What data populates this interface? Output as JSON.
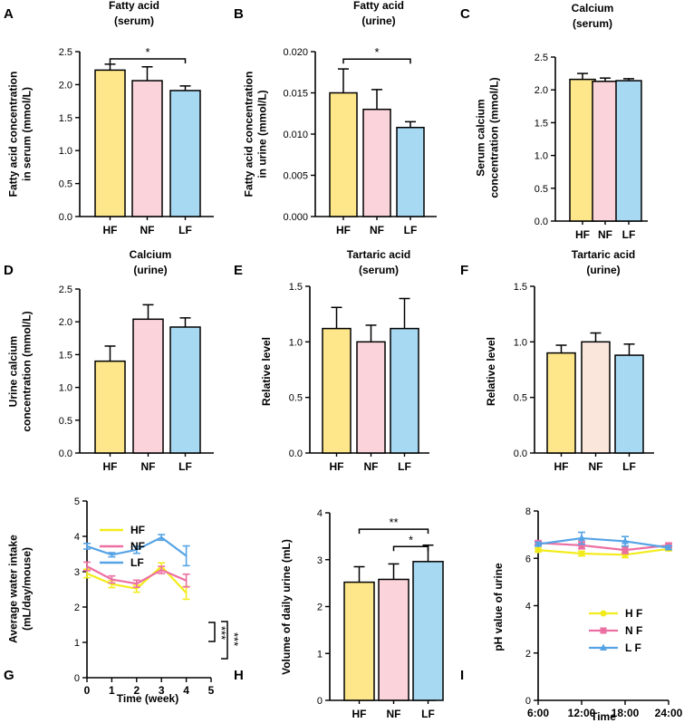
{
  "colors": {
    "HF": "#fde78a",
    "NF": "#fbd3da",
    "LF": "#a7d9f3",
    "NF_F": "#fbe6dc",
    "line_HF": "#f2ec1c",
    "line_NF": "#ec6fa2",
    "line_LF": "#55a3e5"
  },
  "chart_data": [
    {
      "id": "A",
      "type": "bar",
      "title": [
        "Fatty acid",
        "(serum)"
      ],
      "ylabel": [
        "Fatty acid concentration",
        "in serum (mmol/L)"
      ],
      "categories": [
        "HF",
        "NF",
        "LF"
      ],
      "values": [
        2.22,
        2.06,
        1.91
      ],
      "errors": [
        0.09,
        0.21,
        0.07
      ],
      "ylim": [
        0,
        2.5
      ],
      "ticks": [
        0,
        0.5,
        1.0,
        1.5,
        2.0,
        2.5
      ],
      "tick_labels": [
        "0.0",
        "0.5",
        "1.0",
        "1.5",
        "2.0",
        "2.5"
      ],
      "colors": [
        "HF",
        "NF",
        "LF"
      ],
      "sig": [
        {
          "from": 0,
          "to": 2,
          "label": "*",
          "level": 2.39
        }
      ]
    },
    {
      "id": "B",
      "type": "bar",
      "title": [
        "Fatty acid",
        "(urine)"
      ],
      "ylabel": [
        "Fatty acid concentration",
        "in urine (mmol/L)"
      ],
      "categories": [
        "HF",
        "NF",
        "LF"
      ],
      "values": [
        0.015,
        0.013,
        0.0108
      ],
      "errors": [
        0.0029,
        0.0024,
        0.0007
      ],
      "ylim": [
        0,
        0.02
      ],
      "ticks": [
        0,
        0.005,
        0.01,
        0.015,
        0.02
      ],
      "tick_labels": [
        "0.000",
        "0.005",
        "0.010",
        "0.015",
        "0.020"
      ],
      "colors": [
        "HF",
        "NF",
        "LF"
      ],
      "sig": [
        {
          "from": 0,
          "to": 2,
          "label": "*",
          "level": 0.0191
        }
      ]
    },
    {
      "id": "C",
      "type": "bar",
      "title": [
        "Calcium",
        "(serum)"
      ],
      "ylabel": [
        "Serum calcium",
        "concentration (mmol/L)"
      ],
      "categories": [
        "HF",
        "NF",
        "LF"
      ],
      "values": [
        2.16,
        2.13,
        2.14
      ],
      "errors": [
        0.09,
        0.05,
        0.03
      ],
      "ylim": [
        0,
        2.5
      ],
      "ticks": [
        0,
        0.5,
        1.0,
        1.5,
        2.0,
        2.5
      ],
      "tick_labels": [
        "0.0",
        "0.5",
        "1.0",
        "1.5",
        "2.0",
        "2.5"
      ],
      "colors": [
        "HF",
        "NF",
        "LF"
      ],
      "sig": []
    },
    {
      "id": "D",
      "type": "bar",
      "title": [
        "Calcium",
        "(urine)"
      ],
      "ylabel": [
        "Urine calcium",
        "concentration (mmol/L)"
      ],
      "categories": [
        "HF",
        "NF",
        "LF"
      ],
      "values": [
        1.4,
        2.04,
        1.92
      ],
      "errors": [
        0.23,
        0.22,
        0.14
      ],
      "ylim": [
        0,
        2.5
      ],
      "ticks": [
        0,
        0.5,
        1.0,
        1.5,
        2.0,
        2.5
      ],
      "tick_labels": [
        "0.0",
        "0.5",
        "1.0",
        "1.5",
        "2.0",
        "2.5"
      ],
      "colors": [
        "HF",
        "NF",
        "LF"
      ],
      "sig": []
    },
    {
      "id": "E",
      "type": "bar",
      "title": [
        "Tartaric acid",
        "(serum)"
      ],
      "ylabel": [
        "Relative level"
      ],
      "categories": [
        "HF",
        "NF",
        "LF"
      ],
      "values": [
        1.12,
        1.0,
        1.12
      ],
      "errors": [
        0.19,
        0.15,
        0.27
      ],
      "ylim": [
        0,
        1.5
      ],
      "ticks": [
        0,
        0.5,
        1.0,
        1.5
      ],
      "tick_labels": [
        "0.0",
        "0.5",
        "1.0",
        "1.5"
      ],
      "colors": [
        "HF",
        "NF",
        "LF"
      ],
      "sig": []
    },
    {
      "id": "F",
      "type": "bar",
      "title": [
        "Tartaric acid",
        "(urine)"
      ],
      "ylabel": [
        "Relative level"
      ],
      "categories": [
        "HF",
        "NF",
        "LF"
      ],
      "values": [
        0.9,
        1.0,
        0.88
      ],
      "errors": [
        0.07,
        0.08,
        0.1
      ],
      "ylim": [
        0,
        1.5
      ],
      "ticks": [
        0,
        0.5,
        1.0,
        1.5
      ],
      "tick_labels": [
        "0.0",
        "0.5",
        "1.0",
        "1.5"
      ],
      "colors": [
        "HF",
        "NF_F",
        "LF"
      ],
      "sig": []
    },
    {
      "id": "G",
      "type": "line",
      "xlabel": "Time (week)",
      "ylabel": [
        "Average water intake",
        "(mL/day/mouse)"
      ],
      "x": [
        0,
        1,
        2,
        3,
        4
      ],
      "xlim": [
        0,
        5
      ],
      "xticks": [
        0,
        1,
        2,
        3,
        4,
        5
      ],
      "ylim": [
        0,
        5
      ],
      "yticks": [
        0,
        1,
        2,
        3,
        4,
        5
      ],
      "series": [
        {
          "name": "HF",
          "values": [
            2.95,
            2.65,
            2.52,
            3.15,
            2.4
          ],
          "errors": [
            0.12,
            0.1,
            0.1,
            0.1,
            0.18
          ],
          "color": "line_HF",
          "marker": "circle"
        },
        {
          "name": "NF",
          "values": [
            3.15,
            2.78,
            2.66,
            3.05,
            2.75
          ],
          "errors": [
            0.12,
            0.1,
            0.1,
            0.1,
            0.18
          ],
          "color": "line_NF",
          "marker": "circle"
        },
        {
          "name": "LF",
          "values": [
            3.72,
            3.48,
            3.62,
            3.97,
            3.45
          ],
          "errors": [
            0.08,
            0.06,
            0.1,
            0.08,
            0.28
          ],
          "color": "line_LF",
          "marker": "circle"
        }
      ],
      "legend": [
        "HF",
        "NF",
        "LF"
      ],
      "brackets": [
        "***",
        "***"
      ]
    },
    {
      "id": "H",
      "type": "bar",
      "title": [],
      "ylabel": [
        "Volume of daily urine (mL)"
      ],
      "categories": [
        "HF",
        "NF",
        "LF"
      ],
      "values": [
        2.52,
        2.58,
        2.96
      ],
      "errors": [
        0.33,
        0.33,
        0.35
      ],
      "ylim": [
        0,
        4
      ],
      "ticks": [
        0,
        1,
        2,
        3,
        4
      ],
      "tick_labels": [
        "0",
        "1",
        "2",
        "3",
        "4"
      ],
      "colors": [
        "HF",
        "NF",
        "LF"
      ],
      "sig": [
        {
          "from": 0,
          "to": 2,
          "label": "**",
          "level": 3.65
        },
        {
          "from": 1,
          "to": 2,
          "label": "*",
          "level": 3.28
        }
      ]
    },
    {
      "id": "I",
      "type": "line",
      "xlabel": "Time",
      "ylabel": [
        "pH value of urine"
      ],
      "x": [
        "6:00",
        "12:00",
        "18:00",
        "24:00"
      ],
      "ylim": [
        0,
        8
      ],
      "yticks": [
        0,
        2,
        4,
        6,
        8
      ],
      "series": [
        {
          "name": "H F",
          "values": [
            6.35,
            6.2,
            6.15,
            6.4
          ],
          "errors": [
            0.08,
            0.1,
            0.12,
            0.08
          ],
          "color": "line_HF",
          "marker": "circle"
        },
        {
          "name": "N F",
          "values": [
            6.65,
            6.55,
            6.35,
            6.55
          ],
          "errors": [
            0.08,
            0.15,
            0.15,
            0.08
          ],
          "color": "line_NF",
          "marker": "square"
        },
        {
          "name": "L F",
          "values": [
            6.6,
            6.85,
            6.72,
            6.45
          ],
          "errors": [
            0.08,
            0.25,
            0.2,
            0.08
          ],
          "color": "line_LF",
          "marker": "triangle"
        }
      ],
      "legend": [
        "H F",
        "N F",
        "L F"
      ]
    }
  ]
}
